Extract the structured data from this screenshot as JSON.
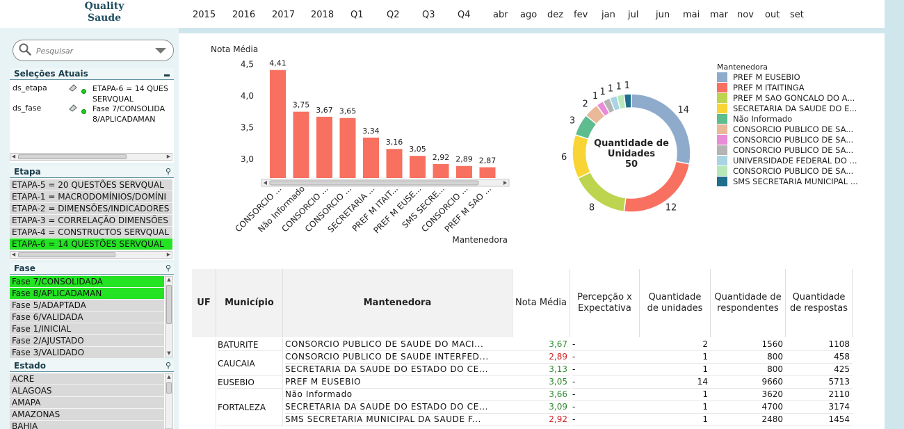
{
  "app": {
    "logo_line1": "Quality",
    "logo_line2": "Saude"
  },
  "periods": [
    "2015",
    "2016",
    "2017",
    "2018",
    "Q1",
    "Q2",
    "Q3",
    "Q4",
    "abr",
    "ago",
    "dez",
    "fev",
    "jan",
    "jul",
    "jun",
    "mai",
    "mar",
    "nov",
    "out",
    "set"
  ],
  "search": {
    "placeholder": "Pesquisar"
  },
  "current_selections": {
    "title": "Seleções Atuais",
    "rows": [
      {
        "field": "ds_etapa",
        "value": "ETAPA-6 = 14 QUES\nSERVQUAL"
      },
      {
        "field": "ds_fase",
        "value": "Fase 7/CONSOLIDA\n8/APLICADAMAN"
      }
    ]
  },
  "etapa": {
    "title": "Etapa",
    "items": [
      {
        "label": "ETAPA-5 = 20 QUESTÕES SERVQUAL",
        "selected": false
      },
      {
        "label": "ETAPA-1 = MACRODOMÍNIOS/DOMÍNI",
        "selected": false
      },
      {
        "label": "ETAPA-2 = DIMENSÕES/INDICADORES",
        "selected": false
      },
      {
        "label": "ETAPA-3 = CORRELAÇÃO DIMENSÕES",
        "selected": false
      },
      {
        "label": "ETAPA-4 = CONSTRUCTOS SERVQUAL",
        "selected": false
      },
      {
        "label": "ETAPA-6 = 14 QUESTÕES SERVQUAL",
        "selected": true
      }
    ]
  },
  "fase": {
    "title": "Fase",
    "items": [
      {
        "label": "Fase 7/CONSOLIDADA",
        "selected": true
      },
      {
        "label": "Fase 8/APLICADAMAN",
        "selected": true
      },
      {
        "label": "Fase 5/ADAPTADA",
        "selected": false
      },
      {
        "label": "Fase 6/VALIDADA",
        "selected": false
      },
      {
        "label": "Fase 1/INICIAL",
        "selected": false
      },
      {
        "label": "Fase 2/AJUSTADO",
        "selected": false
      },
      {
        "label": "Fase 3/VALIDADO",
        "selected": false
      }
    ]
  },
  "estado": {
    "title": "Estado",
    "items": [
      {
        "label": "ACRE"
      },
      {
        "label": "ALAGOAS"
      },
      {
        "label": "AMAPA"
      },
      {
        "label": "AMAZONAS"
      },
      {
        "label": "BAHIA"
      }
    ]
  },
  "colors": {
    "bar": "#f87060",
    "selected_green": "#23e323",
    "sidebar_bg": "#e8f3f5",
    "accent_strip": "#cfe6ec"
  },
  "chart_data": [
    {
      "type": "bar",
      "ylabel": "Nota Média",
      "xlabel": "Mantenedora",
      "ylim": [
        2.7,
        4.55
      ],
      "yticks": [
        "4,5",
        "4,0",
        "3,5",
        "3,0"
      ],
      "ytick_values": [
        4.5,
        4.0,
        3.5,
        3.0
      ],
      "categories": [
        "CONSORCIO ...",
        "Não Informado",
        "CONSORCIO ...",
        "CONSORCIO ...",
        "SECRETARIA ...",
        "PREF M ITAIT...",
        "PREF M EUSE...",
        "SMS SECRE...",
        "CONSORCIO ...",
        "PREF M SAO ..."
      ],
      "values": [
        4.41,
        3.75,
        3.67,
        3.65,
        3.34,
        3.16,
        3.05,
        2.92,
        2.89,
        2.87
      ],
      "value_labels": [
        "4,41",
        "3,75",
        "3,67",
        "3,65",
        "3,34",
        "3,16",
        "3,05",
        "2,92",
        "2,89",
        "2,87"
      ]
    },
    {
      "type": "pie",
      "center_label_line1": "Quantidade de",
      "center_label_line2": "Unidades",
      "center_total": "50",
      "legend_title": "Mantenedora",
      "legend_position": "right",
      "slices": [
        {
          "name": "PREF M EUSEBIO",
          "value": 14,
          "color": "#8fabcc"
        },
        {
          "name": "PREF M ITAITINGA",
          "value": 12,
          "color": "#f87060"
        },
        {
          "name": "PREF M SAO GONCALO DO A...",
          "value": 8,
          "color": "#bcd44e"
        },
        {
          "name": "SECRETARIA DA SAUDE DO E...",
          "value": 6,
          "color": "#f8d534"
        },
        {
          "name": "Não Informado",
          "value": 3,
          "color": "#5ebd8e"
        },
        {
          "name": "CONSORCIO PUBLICO DE SA...",
          "value": 2,
          "color": "#e8b898"
        },
        {
          "name": "CONSORCIO PUBLICO DE SA...",
          "value": 1,
          "color": "#e88cd8"
        },
        {
          "name": "CONSORCIO PUBLICO DE SA...",
          "value": 1,
          "color": "#b4b4b4"
        },
        {
          "name": "UNIVERSIDADE FEDERAL DO ...",
          "value": 1,
          "color": "#a8d4e4"
        },
        {
          "name": "CONSORCIO PUBLICO DE SA...",
          "value": 1,
          "color": "#b8e8b8"
        },
        {
          "name": "SMS SECRETARIA MUNICIPAL ...",
          "value": 1,
          "color": "#1e6e8c"
        }
      ]
    }
  ],
  "table": {
    "headers": [
      "UF",
      "Município",
      "Mantenedora",
      "Nota Média",
      "Percepção x\nExpectativa",
      "Quantidade\nde unidades",
      "Quantidade de\nrespondentes",
      "Quantidade\nde respostas"
    ],
    "rows": [
      {
        "municipio": "BATURITE",
        "mantenedora": "CONSORCIO PUBLICO DE SAUDE DO MACI...",
        "nota": "3,67",
        "nota_color": "green",
        "percepcao": "-",
        "unidades": "2",
        "respondentes": "1560",
        "respostas": "1108"
      },
      {
        "municipio": "CAUCAIA",
        "mantenedora": "CONSORCIO PUBLICO DE SAUDE INTERFED...",
        "nota": "2,89",
        "nota_color": "red",
        "percepcao": "-",
        "unidades": "1",
        "respondentes": "800",
        "respostas": "458"
      },
      {
        "municipio": "",
        "mantenedora": "SECRETARIA DA SAUDE DO ESTADO DO CE...",
        "nota": "3,13",
        "nota_color": "green",
        "percepcao": "-",
        "unidades": "1",
        "respondentes": "800",
        "respostas": "425"
      },
      {
        "municipio": "EUSEBIO",
        "mantenedora": "PREF M EUSEBIO",
        "nota": "3,05",
        "nota_color": "green",
        "percepcao": "-",
        "unidades": "14",
        "respondentes": "9660",
        "respostas": "5713"
      },
      {
        "municipio": "",
        "mantenedora": "Não Informado",
        "nota": "3,66",
        "nota_color": "green",
        "percepcao": "-",
        "unidades": "1",
        "respondentes": "3620",
        "respostas": "2110"
      },
      {
        "municipio": "FORTALEZA",
        "mantenedora": "SECRETARIA DA SAUDE DO ESTADO DO CE...",
        "nota": "3,09",
        "nota_color": "green",
        "percepcao": "-",
        "unidades": "1",
        "respondentes": "4700",
        "respostas": "3174"
      },
      {
        "municipio": "",
        "mantenedora": "SMS SECRETARIA MUNICIPAL DA SAUDE F...",
        "nota": "2,92",
        "nota_color": "red",
        "percepcao": "-",
        "unidades": "1",
        "respondentes": "2480",
        "respostas": "1454"
      }
    ]
  }
}
